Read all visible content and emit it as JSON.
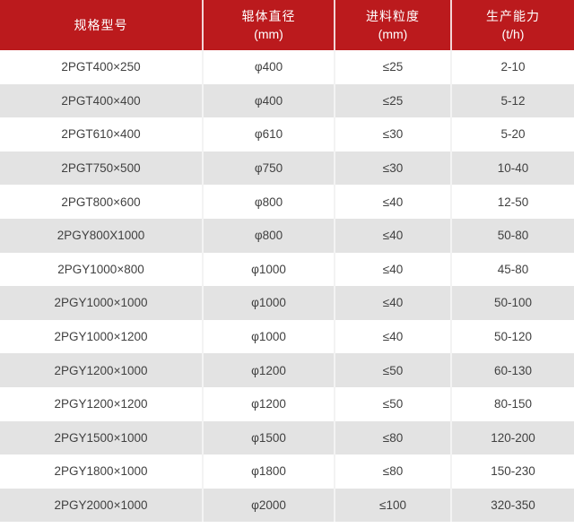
{
  "table": {
    "columns": [
      {
        "label": "规格型号",
        "sublabel": ""
      },
      {
        "label": "辊体直径",
        "sublabel": "(mm)"
      },
      {
        "label": "进料粒度",
        "sublabel": "(mm)"
      },
      {
        "label": "生产能力",
        "sublabel": "(t/h)"
      }
    ],
    "rows": [
      [
        "2PGT400×250",
        "φ400",
        "≤25",
        "2-10"
      ],
      [
        "2PGT400×400",
        "φ400",
        "≤25",
        "5-12"
      ],
      [
        "2PGT610×400",
        "φ610",
        "≤30",
        "5-20"
      ],
      [
        "2PGT750×500",
        "φ750",
        "≤30",
        "10-40"
      ],
      [
        "2PGT800×600",
        "φ800",
        "≤40",
        "12-50"
      ],
      [
        "2PGY800X1000",
        "φ800",
        "≤40",
        "50-80"
      ],
      [
        "2PGY1000×800",
        "φ1000",
        "≤40",
        "45-80"
      ],
      [
        "2PGY1000×1000",
        "φ1000",
        "≤40",
        "50-100"
      ],
      [
        "2PGY1000×1200",
        "φ1000",
        "≤40",
        "50-120"
      ],
      [
        "2PGY1200×1000",
        "φ1200",
        "≤50",
        "60-130"
      ],
      [
        "2PGY1200×1200",
        "φ1200",
        "≤50",
        "80-150"
      ],
      [
        "2PGY1500×1000",
        "φ1500",
        "≤80",
        "120-200"
      ],
      [
        "2PGY1800×1000",
        "φ1800",
        "≤80",
        "150-230"
      ],
      [
        "2PGY2000×1000",
        "φ2000",
        "≤100",
        "320-350"
      ]
    ]
  },
  "colors": {
    "header_bg": "#bb1a1d",
    "header_text": "#ffffff",
    "row_bg": "#ffffff",
    "row_alt_bg": "#e3e3e3",
    "body_text": "#414141"
  },
  "chart_data": {
    "type": "table",
    "title": "",
    "columns": [
      "规格型号",
      "辊体直径 (mm)",
      "进料粒度 (mm)",
      "生产能力 (t/h)"
    ],
    "rows": [
      [
        "2PGT400×250",
        "φ400",
        "≤25",
        "2-10"
      ],
      [
        "2PGT400×400",
        "φ400",
        "≤25",
        "5-12"
      ],
      [
        "2PGT610×400",
        "φ610",
        "≤30",
        "5-20"
      ],
      [
        "2PGT750×500",
        "φ750",
        "≤30",
        "10-40"
      ],
      [
        "2PGT800×600",
        "φ800",
        "≤40",
        "12-50"
      ],
      [
        "2PGY800X1000",
        "φ800",
        "≤40",
        "50-80"
      ],
      [
        "2PGY1000×800",
        "φ1000",
        "≤40",
        "45-80"
      ],
      [
        "2PGY1000×1000",
        "φ1000",
        "≤40",
        "50-100"
      ],
      [
        "2PGY1000×1200",
        "φ1000",
        "≤40",
        "50-120"
      ],
      [
        "2PGY1200×1000",
        "φ1200",
        "≤50",
        "60-130"
      ],
      [
        "2PGY1200×1200",
        "φ1200",
        "≤50",
        "80-150"
      ],
      [
        "2PGY1500×1000",
        "φ1500",
        "≤80",
        "120-200"
      ],
      [
        "2PGY1800×1000",
        "φ1800",
        "≤80",
        "150-230"
      ],
      [
        "2PGY2000×1000",
        "φ2000",
        "≤100",
        "320-350"
      ]
    ]
  }
}
